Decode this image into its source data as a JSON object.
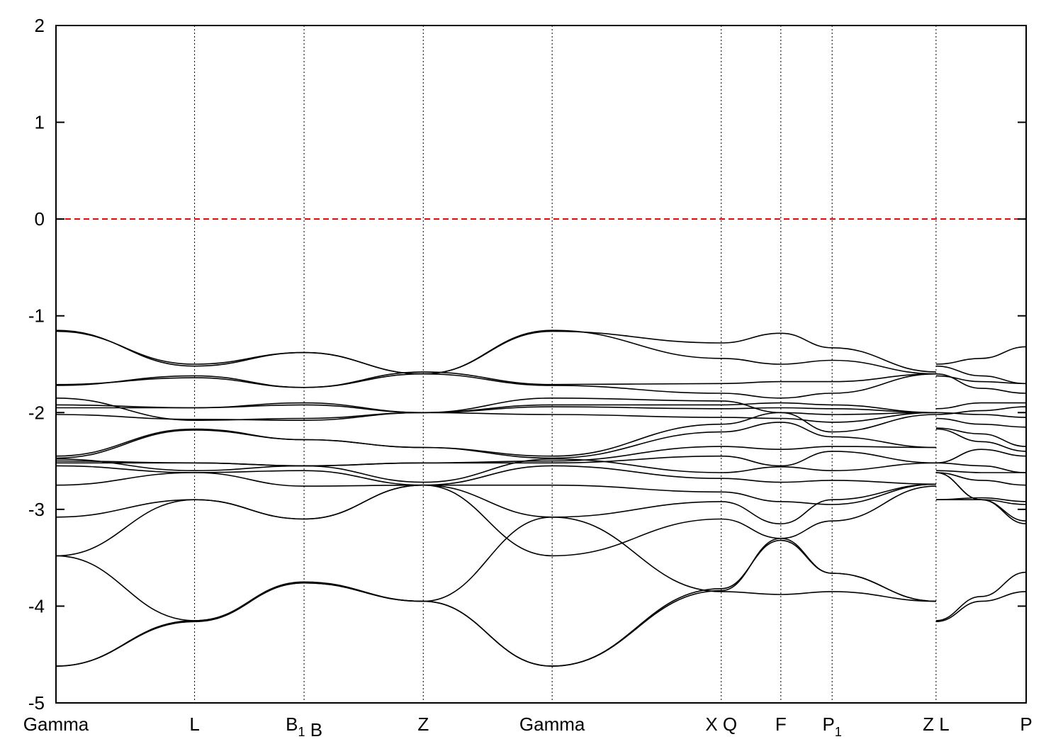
{
  "chart_data": {
    "type": "line",
    "title": "",
    "xlabel": "",
    "ylabel": "",
    "ylim": [
      -5,
      2
    ],
    "y_ticks": [
      "2",
      "1",
      "0",
      "-1",
      "-2",
      "-3",
      "-4",
      "-5"
    ],
    "k_points": [
      {
        "main": "Gamma",
        "sub": "",
        "x": 0.0
      },
      {
        "main": "L",
        "sub": "",
        "x": 1.0
      },
      {
        "main": "B",
        "sub": "1",
        "x": 1.79
      },
      {
        "main": "B",
        "sub": "",
        "x": 1.79
      },
      {
        "main": "Z",
        "sub": "",
        "x": 2.65
      },
      {
        "main": "Gamma",
        "sub": "",
        "x": 3.58
      },
      {
        "main": "X",
        "sub": "",
        "x": 4.8
      },
      {
        "main": "Q",
        "sub": "",
        "x": 4.8
      },
      {
        "main": "F",
        "sub": "",
        "x": 5.23
      },
      {
        "main": "P",
        "sub": "1",
        "x": 5.6
      },
      {
        "main": "Z",
        "sub": "",
        "x": 6.35
      },
      {
        "main": "L",
        "sub": "",
        "x": 6.35
      },
      {
        "main": "P",
        "sub": "",
        "x": 7.0
      }
    ],
    "vertical_lines": [
      1.0,
      1.79,
      2.65,
      3.58,
      4.8,
      5.23,
      5.6,
      6.35
    ],
    "fermi_level": 0,
    "fermi_color": "#e00000",
    "line_color": "#000000",
    "grid": false,
    "x_breaks": [
      0,
      1.0,
      1.79,
      2.65,
      3.58,
      4.8,
      5.23,
      5.6,
      6.35,
      7.0
    ],
    "discontinuous_segment_start": 6.35,
    "bands": [
      {
        "seg1": [
          -1.15,
          -1.52,
          -1.38,
          -1.6,
          -1.15,
          -1.44,
          -1.5,
          -1.46,
          -1.6
        ],
        "seg2": [
          -1.5,
          -1.44,
          -1.32
        ]
      },
      {
        "seg1": [
          -1.16,
          -1.5,
          -1.38,
          -1.6,
          -1.16,
          -1.28,
          -1.18,
          -1.33,
          -1.58
        ],
        "seg2": [
          -1.52,
          -1.62,
          -1.7
        ]
      },
      {
        "seg1": [
          -1.71,
          -1.64,
          -1.74,
          -1.58,
          -1.71,
          -1.7,
          -1.68,
          -1.68,
          -1.6
        ],
        "seg2": [
          -1.6,
          -1.75,
          -1.8
        ]
      },
      {
        "seg1": [
          -1.72,
          -1.62,
          -1.74,
          -1.6,
          -1.72,
          -1.8,
          -1.85,
          -1.8,
          -1.6
        ],
        "seg2": [
          -1.62,
          -1.68,
          -1.7
        ]
      },
      {
        "seg1": [
          -1.92,
          -1.95,
          -1.9,
          -2.0,
          -1.92,
          -1.92,
          -1.9,
          -1.92,
          -2.0
        ],
        "seg2": [
          -1.96,
          -1.9,
          -1.9
        ]
      },
      {
        "seg1": [
          -1.95,
          -1.95,
          -1.92,
          -2.0,
          -1.94,
          -1.96,
          -1.95,
          -1.96,
          -2.0
        ],
        "seg2": [
          -2.02,
          -1.98,
          -1.94
        ]
      },
      {
        "seg1": [
          -1.85,
          -2.08,
          -2.06,
          -2.0,
          -1.85,
          -1.88,
          -2.0,
          -2.02,
          -2.0
        ],
        "seg2": [
          -2.0,
          -2.02,
          -2.05
        ]
      },
      {
        "seg1": [
          -2.02,
          -2.07,
          -2.08,
          -2.0,
          -2.02,
          -2.05,
          -2.06,
          -2.1,
          -2.0
        ],
        "seg2": [
          -2.06,
          -2.12,
          -2.15
        ]
      },
      {
        "seg1": [
          -2.45,
          -2.17,
          -2.28,
          -2.36,
          -2.45,
          -2.12,
          -2.0,
          -2.2,
          -2.02
        ],
        "seg2": [
          -2.16,
          -2.22,
          -2.35
        ]
      },
      {
        "seg1": [
          -2.47,
          -2.18,
          -2.28,
          -2.36,
          -2.47,
          -2.2,
          -2.1,
          -2.25,
          -2.36
        ],
        "seg2": [
          -2.17,
          -2.3,
          -2.4
        ]
      },
      {
        "seg1": [
          -2.5,
          -2.52,
          -2.55,
          -2.52,
          -2.5,
          -2.35,
          -2.38,
          -2.35,
          -2.36
        ],
        "seg2": [
          -2.52,
          -2.38,
          -2.45
        ]
      },
      {
        "seg1": [
          -2.52,
          -2.52,
          -2.55,
          -2.52,
          -2.52,
          -2.45,
          -2.55,
          -2.4,
          -2.52
        ],
        "seg2": [
          -2.52,
          -2.55,
          -2.62
        ]
      },
      {
        "seg1": [
          -2.48,
          -2.6,
          -2.55,
          -2.72,
          -2.48,
          -2.62,
          -2.56,
          -2.6,
          -2.52
        ],
        "seg2": [
          -2.6,
          -2.62,
          -2.62
        ]
      },
      {
        "seg1": [
          -2.55,
          -2.62,
          -2.6,
          -2.75,
          -2.55,
          -2.68,
          -2.72,
          -2.7,
          -2.74
        ],
        "seg2": [
          -2.62,
          -2.7,
          -2.75
        ]
      },
      {
        "seg1": [
          -2.75,
          -2.62,
          -2.76,
          -2.75,
          -2.75,
          -2.82,
          -2.92,
          -2.95,
          -2.74
        ],
        "seg2": [
          -2.9,
          -2.88,
          -2.92
        ]
      },
      {
        "seg1": [
          -3.08,
          -2.9,
          -3.1,
          -2.75,
          -3.08,
          -2.92,
          -3.15,
          -2.9,
          -2.74
        ],
        "seg2": [
          -2.62,
          -2.9,
          -2.95
        ]
      },
      {
        "seg1": [
          -3.48,
          -2.9,
          -3.1,
          -2.75,
          -3.48,
          -3.1,
          -3.3,
          -3.12,
          -2.76
        ],
        "seg2": [
          -2.62,
          -2.9,
          -3.12
        ]
      },
      {
        "seg1": [
          -3.48,
          -4.15,
          -3.75,
          -3.95,
          -3.08,
          -3.85,
          -3.88,
          -3.85,
          -3.95
        ],
        "seg2": [
          -2.9,
          -2.9,
          -3.15
        ]
      },
      {
        "seg1": [
          -4.62,
          -4.15,
          -3.76,
          -3.95,
          -4.62,
          -3.84,
          -3.3,
          -3.66,
          -3.95
        ],
        "seg2": [
          -4.15,
          -3.9,
          -3.65
        ]
      },
      {
        "seg1": [
          -4.62,
          -4.16,
          -3.76,
          -3.95,
          -4.62,
          -3.82,
          -3.32,
          -3.66,
          -3.95
        ],
        "seg2": [
          -4.16,
          -3.95,
          -3.85
        ]
      }
    ]
  }
}
